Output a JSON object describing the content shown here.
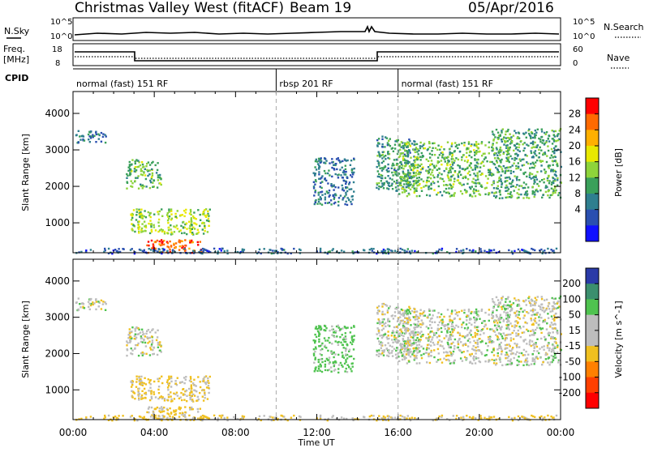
{
  "header": {
    "title": "Christmas Valley West (fitACF)",
    "beam": "Beam 19",
    "date": "05/Apr/2016"
  },
  "panel_labels": {
    "nsky": "N.Sky",
    "freq_line1": "Freq.",
    "freq_line2": "[MHz]",
    "cpid": "CPID",
    "nsearch": "N.Search",
    "nave": "Nave"
  },
  "small_ticks": {
    "nsky_top": "10^5",
    "nsky_bottom": "10^0",
    "freq_top": "18",
    "freq_bottom": "8",
    "nave_top": "60",
    "nave_bottom": "0"
  },
  "cpid_segments": [
    {
      "label": "normal (fast) 151 RF",
      "start_hour": 0
    },
    {
      "label": "rbsp 201 RF",
      "start_hour": 10
    },
    {
      "label": "normal (fast) 151 RF",
      "start_hour": 16
    }
  ],
  "axes": {
    "ylabel": "Slant Range [km]",
    "xlabel": "Time UT",
    "x_ticks": [
      "00:00",
      "04:00",
      "08:00",
      "12:00",
      "16:00",
      "20:00",
      "00:00"
    ],
    "y_ticks": [
      "1000",
      "2000",
      "3000",
      "4000"
    ],
    "xlim_hours": [
      0,
      24
    ],
    "ylim_km": [
      180,
      4600
    ]
  },
  "power_colorbar": {
    "label": "Power [dB]",
    "ticks": [
      "28",
      "24",
      "20",
      "16",
      "12",
      "8",
      "4"
    ],
    "colors": [
      "#ff0000",
      "#ff6a00",
      "#ffb000",
      "#e8e800",
      "#8ed43a",
      "#3aa05a",
      "#2f7f8f",
      "#2a4fb0",
      "#1010ff"
    ]
  },
  "velocity_colorbar": {
    "label": "Velocity [m s^-1]",
    "ticks": [
      "200",
      "100",
      "50",
      "15",
      "-15",
      "-50",
      "-100",
      "-200"
    ],
    "colors": [
      "#2a3aa8",
      "#3b8f6e",
      "#4fc34f",
      "#bdbdbd",
      "#bdbdbd",
      "#f0c020",
      "#ff8000",
      "#ff4000",
      "#ff0000"
    ]
  },
  "chart_data": {
    "type": "heatmap",
    "x_unit": "hours UT",
    "y_unit": "km",
    "cpid_boundaries_hours": [
      10,
      16
    ],
    "echo_regions": [
      {
        "t0": 0.1,
        "t1": 1.6,
        "r0": 3200,
        "r1": 3550,
        "power_db": 8,
        "velocity": 0
      },
      {
        "t0": 2.6,
        "t1": 4.3,
        "r0": 1950,
        "r1": 2750,
        "power_db": 14,
        "velocity": 0
      },
      {
        "t0": 2.8,
        "t1": 6.7,
        "r0": 700,
        "r1": 1400,
        "power_db": 17,
        "velocity": -20
      },
      {
        "t0": 3.6,
        "t1": 6.3,
        "r0": 200,
        "r1": 560,
        "power_db": 29,
        "velocity": -20
      },
      {
        "t0": 11.8,
        "t1": 13.8,
        "r0": 1500,
        "r1": 2800,
        "power_db": 7,
        "velocity": 30
      },
      {
        "t0": 14.9,
        "t1": 16.8,
        "r0": 1900,
        "r1": 3400,
        "power_db": 10,
        "velocity": 0
      },
      {
        "t0": 16.0,
        "t1": 20.5,
        "r0": 1750,
        "r1": 3250,
        "power_db": 14,
        "velocity": 0
      },
      {
        "t0": 20.5,
        "t1": 24.0,
        "r0": 1700,
        "r1": 3600,
        "power_db": 12,
        "velocity": 0
      },
      {
        "t0": 0.0,
        "t1": 24.0,
        "r0": 180,
        "r1": 320,
        "power_db": 6,
        "velocity": -20
      }
    ]
  }
}
